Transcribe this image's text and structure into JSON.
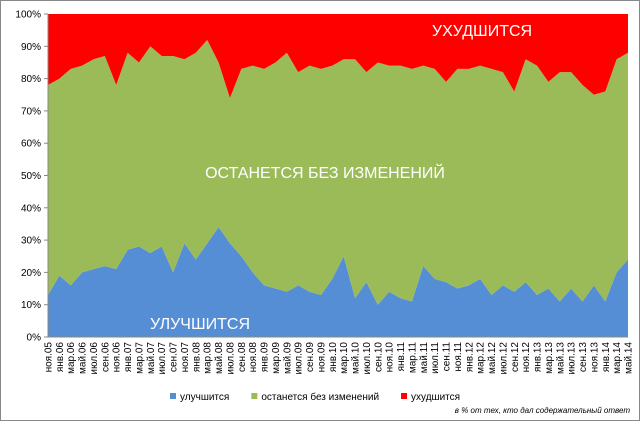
{
  "chart_data": {
    "type": "stacked-area",
    "annotations": [
      "УХУДШИТСЯ",
      "ОСТАНЕТСЯ БЕЗ ИЗМЕНЕНИЙ",
      "УЛУЧШИТСЯ"
    ],
    "note": "в % от тех, кто дал содержательный ответ",
    "categories": [
      "ноя.05",
      "янв.06",
      "мар.06",
      "май.06",
      "июл.06",
      "сен.06",
      "ноя.06",
      "янв.07",
      "мар.07",
      "май.07",
      "июл.07",
      "сен.07",
      "ноя.07",
      "янв.08",
      "мар.08",
      "май.08",
      "июл.08",
      "сен.08",
      "ноя.08",
      "янв.09",
      "мар.09",
      "май.09",
      "июл.09",
      "сен.09",
      "ноя.09",
      "янв.10",
      "мар.10",
      "май.10",
      "июл.10",
      "сен.10",
      "ноя.10",
      "янв.11",
      "мар.11",
      "май.11",
      "июл.11",
      "сен.11",
      "ноя.11",
      "янв.12",
      "мар.12",
      "май.12",
      "июл.12",
      "сен.12",
      "ноя.12",
      "янв.13",
      "мар.13",
      "май.13",
      "июл.13",
      "сен.13",
      "ноя.13",
      "янв.14",
      "мар.14",
      "май.14"
    ],
    "series": [
      {
        "name": "улучшится",
        "color": "#558ed5",
        "values": [
          13,
          19,
          16,
          20,
          21,
          22,
          21,
          27,
          28,
          26,
          28,
          20,
          29,
          24,
          29,
          34,
          29,
          25,
          20,
          16,
          15,
          14,
          16,
          14,
          13,
          18,
          25,
          12,
          17,
          10,
          14,
          12,
          11,
          22,
          18,
          17,
          15,
          16,
          18,
          13,
          16,
          14,
          17,
          13,
          15,
          11,
          15,
          11,
          16,
          11,
          20,
          24
        ]
      },
      {
        "name": "останется без изменений",
        "color": "#9bbb59",
        "values": [
          65,
          61,
          67,
          64,
          65,
          65,
          57,
          61,
          57,
          64,
          59,
          67,
          57,
          64,
          63,
          51,
          45,
          58,
          64,
          67,
          70,
          74,
          66,
          70,
          70,
          66,
          61,
          74,
          65,
          75,
          70,
          72,
          72,
          62,
          65,
          62,
          68,
          67,
          66,
          70,
          66,
          62,
          69,
          71,
          64,
          71,
          67,
          67,
          59,
          65,
          66,
          64
        ]
      },
      {
        "name": "ухудшится",
        "color": "#ff0000",
        "values": [
          22,
          20,
          17,
          16,
          14,
          13,
          22,
          12,
          15,
          10,
          13,
          13,
          14,
          12,
          8,
          15,
          26,
          17,
          16,
          17,
          15,
          12,
          18,
          16,
          17,
          16,
          14,
          14,
          18,
          15,
          16,
          16,
          17,
          16,
          17,
          21,
          17,
          17,
          16,
          17,
          18,
          24,
          14,
          16,
          21,
          18,
          18,
          22,
          25,
          24,
          14,
          12
        ]
      }
    ],
    "ylim": [
      0,
      100
    ],
    "yticks": [
      {
        "value": 0,
        "label": "0%"
      },
      {
        "value": 10,
        "label": "10%"
      },
      {
        "value": 20,
        "label": "20%"
      },
      {
        "value": 30,
        "label": "30%"
      },
      {
        "value": 40,
        "label": "40%"
      },
      {
        "value": 50,
        "label": "50%"
      },
      {
        "value": 60,
        "label": "60%"
      },
      {
        "value": 70,
        "label": "70%"
      },
      {
        "value": 80,
        "label": "80%"
      },
      {
        "value": 90,
        "label": "90%"
      },
      {
        "value": 100,
        "label": "100%"
      }
    ]
  }
}
